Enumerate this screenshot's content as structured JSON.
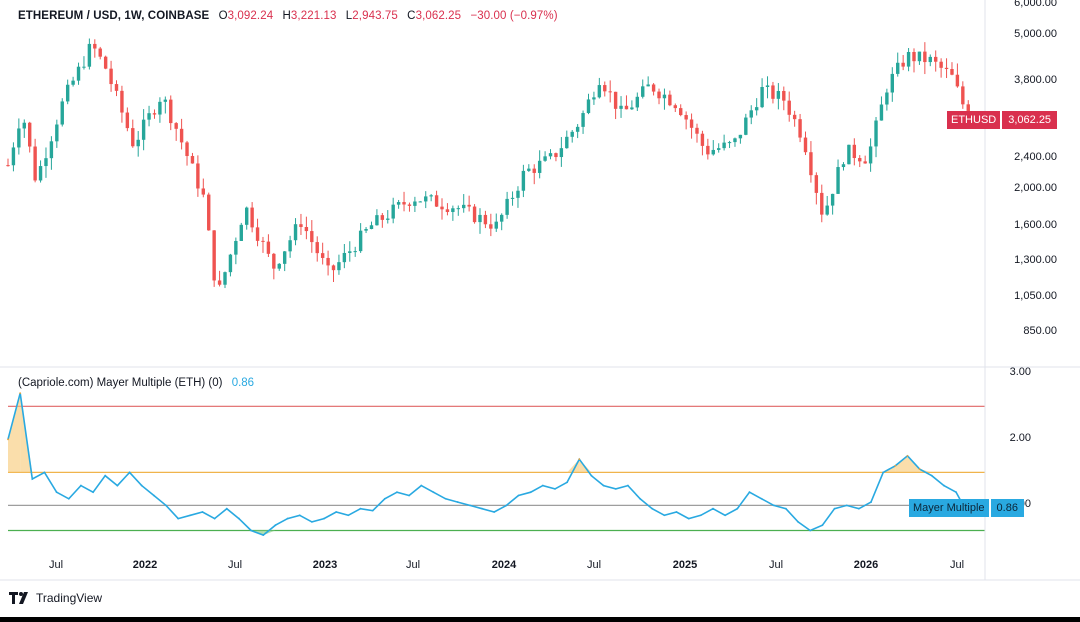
{
  "header": {
    "symbol": "ETHEREUM / USD, 1W, COINBASE",
    "open_key": "O",
    "open": "3,092.24",
    "high_key": "H",
    "high": "3,221.13",
    "low_key": "L",
    "low": "2,943.75",
    "close_key": "C",
    "close": "3,062.25",
    "change": "−30.00 (−0.97%)"
  },
  "price_tag": {
    "symbol": "ETHUSD",
    "value": "3,062.25"
  },
  "indicator": {
    "title": "(Capriole.com) Mayer Multiple (ETH) (0)",
    "value": "0.86",
    "tag_name": "Mayer Multiple",
    "tag_value": "0.86"
  },
  "colors": {
    "up": "#26a69a",
    "down": "#ef5350",
    "line": "#29a9e1",
    "upper_band": "#e06666",
    "mid_band": "#f0b44c",
    "one_line": "#9e9e9e",
    "lower_band": "#4caf50"
  },
  "branding": {
    "name": "TradingView"
  },
  "chart_data": [
    {
      "type": "candlestick",
      "title": "ETHEREUM / USD, 1W, COINBASE",
      "scale": "log",
      "y_ticks": [
        "6,000.00",
        "5,000.00",
        "3,800.00",
        "2,400.00",
        "2,000.00",
        "1,600.00",
        "1,300.00",
        "1,050.00",
        "850.00"
      ],
      "y_tick_values": [
        6000,
        5000,
        3800,
        2400,
        2000,
        1600,
        1300,
        1050,
        850
      ],
      "ylim": [
        700,
        6000
      ],
      "x_ticks": [
        "Jul",
        "2022",
        "Jul",
        "2023",
        "Jul",
        "2024",
        "Jul",
        "2025",
        "Jul",
        "2026",
        "Jul"
      ],
      "x_tick_years": [
        true,
        false,
        true,
        false,
        true,
        false,
        true,
        false,
        true,
        false,
        true
      ],
      "series_close_approx": [
        {
          "t": 0.0,
          "v": 2300
        },
        {
          "t": 0.05,
          "v": 3200
        },
        {
          "t": 0.1,
          "v": 2100
        },
        {
          "t": 0.2,
          "v": 3400
        },
        {
          "t": 0.3,
          "v": 4700
        },
        {
          "t": 0.35,
          "v": 4100
        },
        {
          "t": 0.45,
          "v": 2600
        },
        {
          "t": 0.55,
          "v": 3500
        },
        {
          "t": 0.6,
          "v": 2900
        },
        {
          "t": 0.7,
          "v": 1900
        },
        {
          "t": 0.75,
          "v": 1050
        },
        {
          "t": 0.85,
          "v": 1800
        },
        {
          "t": 0.95,
          "v": 1250
        },
        {
          "t": 1.05,
          "v": 1650
        },
        {
          "t": 1.15,
          "v": 1200
        },
        {
          "t": 1.3,
          "v": 1600
        },
        {
          "t": 1.45,
          "v": 1900
        },
        {
          "t": 1.6,
          "v": 1800
        },
        {
          "t": 1.75,
          "v": 1600
        },
        {
          "t": 1.85,
          "v": 2200
        },
        {
          "t": 1.95,
          "v": 2400
        },
        {
          "t": 2.05,
          "v": 3000
        },
        {
          "t": 2.12,
          "v": 3900
        },
        {
          "t": 2.2,
          "v": 3100
        },
        {
          "t": 2.3,
          "v": 3700
        },
        {
          "t": 2.4,
          "v": 3300
        },
        {
          "t": 2.5,
          "v": 2500
        },
        {
          "t": 2.6,
          "v": 2600
        },
        {
          "t": 2.7,
          "v": 3600
        },
        {
          "t": 2.78,
          "v": 3400
        },
        {
          "t": 2.85,
          "v": 2700
        },
        {
          "t": 2.92,
          "v": 1700
        },
        {
          "t": 3.0,
          "v": 2500
        },
        {
          "t": 3.08,
          "v": 2400
        },
        {
          "t": 3.15,
          "v": 3700
        },
        {
          "t": 3.22,
          "v": 4400
        },
        {
          "t": 3.3,
          "v": 4300
        },
        {
          "t": 3.38,
          "v": 3900
        },
        {
          "t": 3.44,
          "v": 3062
        }
      ],
      "last_value": 3062.25
    },
    {
      "type": "line",
      "title": "(Capriole.com) Mayer Multiple (ETH) (0)",
      "y_ticks": [
        "3.00",
        "2.00",
        "1.00"
      ],
      "y_tick_values": [
        3.0,
        2.0,
        1.0
      ],
      "ylim": [
        0.4,
        3.05
      ],
      "bands": [
        {
          "name": "upper",
          "value": 2.5
        },
        {
          "name": "mid",
          "value": 1.5
        },
        {
          "name": "one",
          "value": 1.0
        },
        {
          "name": "lower",
          "value": 0.62
        }
      ],
      "values": [
        2.0,
        2.7,
        1.4,
        1.5,
        1.2,
        1.1,
        1.3,
        1.2,
        1.45,
        1.3,
        1.5,
        1.3,
        1.15,
        1.0,
        0.8,
        0.85,
        0.9,
        0.8,
        0.95,
        0.8,
        0.62,
        0.55,
        0.7,
        0.8,
        0.85,
        0.75,
        0.8,
        0.9,
        0.85,
        0.95,
        0.92,
        1.1,
        1.2,
        1.15,
        1.3,
        1.2,
        1.1,
        1.05,
        1.0,
        0.95,
        0.9,
        1.0,
        1.15,
        1.2,
        1.3,
        1.25,
        1.35,
        1.7,
        1.45,
        1.3,
        1.25,
        1.3,
        1.1,
        0.95,
        0.85,
        0.9,
        0.8,
        0.85,
        0.95,
        0.85,
        0.95,
        1.2,
        1.1,
        1.0,
        0.95,
        0.75,
        0.62,
        0.7,
        0.95,
        1.0,
        0.95,
        1.05,
        1.5,
        1.6,
        1.75,
        1.55,
        1.45,
        1.3,
        1.2,
        0.86
      ],
      "last_value": 0.86
    }
  ]
}
